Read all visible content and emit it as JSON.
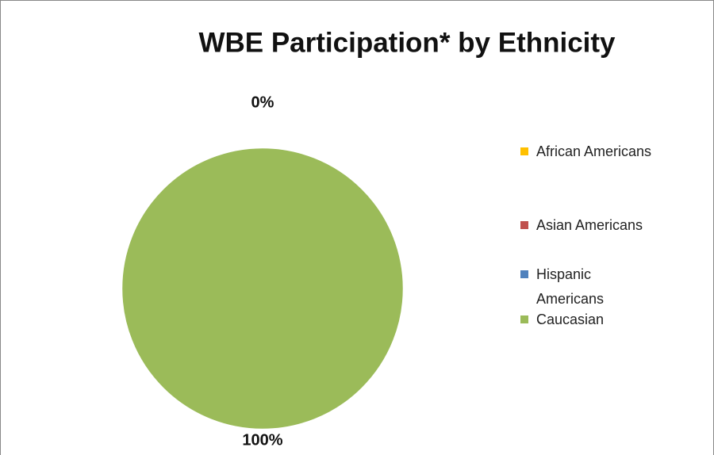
{
  "chart_data": {
    "type": "pie",
    "title": "WBE Participation* by Ethnicity",
    "categories": [
      "African Americans",
      "Asian Americans",
      "Hispanic Americans",
      "Caucasian"
    ],
    "values": [
      0,
      0,
      0,
      100
    ],
    "value_labels": [
      "0%",
      null,
      null,
      "100%"
    ],
    "colors": [
      "#ffc000",
      "#c0504d",
      "#4f81bd",
      "#9bbb59"
    ],
    "legend": "right"
  }
}
